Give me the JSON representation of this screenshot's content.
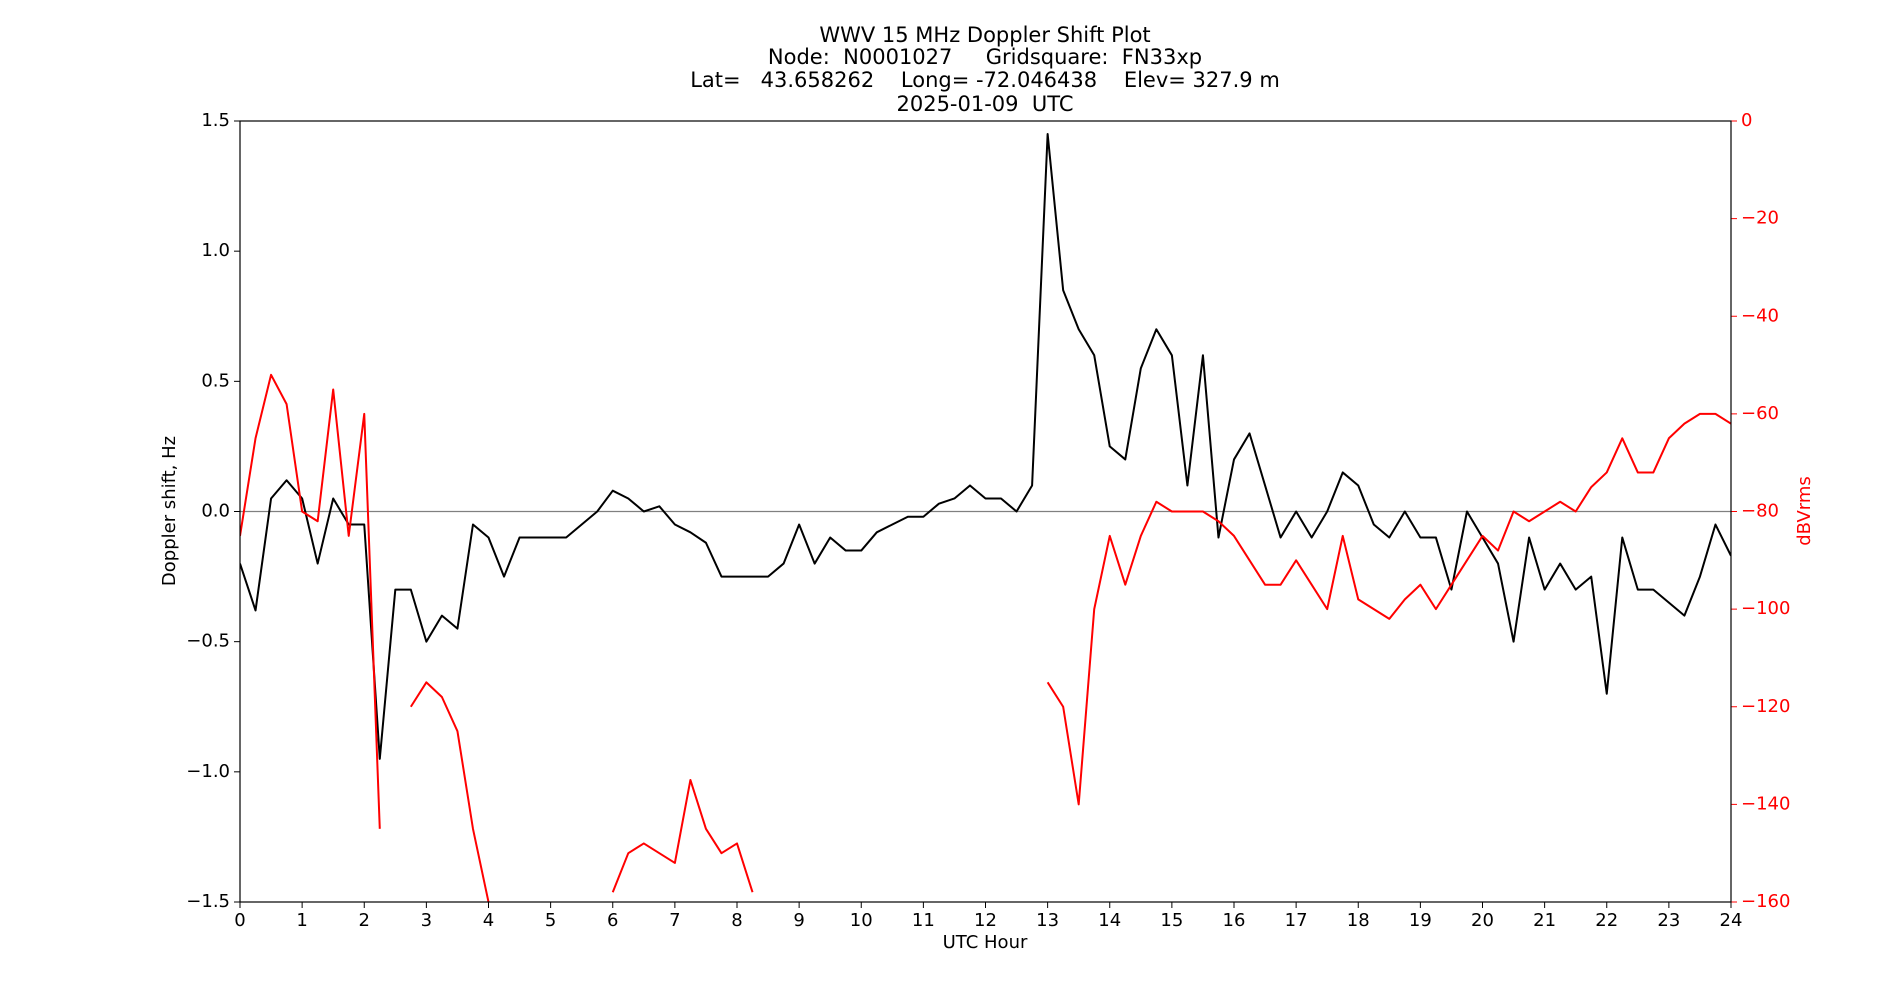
{
  "chart_data": {
    "type": "line",
    "title": "WWV 15 MHz Doppler Shift Plot",
    "subtitle": [
      "Node:  N0001027     Gridsquare:  FN33xp",
      "Lat=   43.658262    Long= -72.046438    Elev= 327.9 m",
      "2025-01-09  UTC"
    ],
    "xlabel": "UTC Hour",
    "ylabel": "Doppler shift, Hz",
    "y2label": "dBVrms",
    "y2color": "#ff0000",
    "x": [
      0,
      0.25,
      0.5,
      0.75,
      1,
      1.25,
      1.5,
      1.75,
      2,
      2.25,
      2.5,
      2.75,
      3,
      3.25,
      3.5,
      3.75,
      4,
      4.25,
      4.5,
      4.75,
      5,
      5.25,
      5.5,
      5.75,
      6,
      6.25,
      6.5,
      6.75,
      7,
      7.25,
      7.5,
      7.75,
      8,
      8.25,
      8.5,
      8.75,
      9,
      9.25,
      9.5,
      9.75,
      10,
      10.25,
      10.5,
      10.75,
      11,
      11.25,
      11.5,
      11.75,
      12,
      12.25,
      12.5,
      12.75,
      13,
      13.25,
      13.5,
      13.75,
      14,
      14.25,
      14.5,
      14.75,
      15,
      15.25,
      15.5,
      15.75,
      16,
      16.25,
      16.5,
      16.75,
      17,
      17.25,
      17.5,
      17.75,
      18,
      18.25,
      18.5,
      18.75,
      19,
      19.25,
      19.5,
      19.75,
      20,
      20.25,
      20.5,
      20.75,
      21,
      21.25,
      21.5,
      21.75,
      22,
      22.25,
      22.5,
      22.75,
      23,
      23.25,
      23.5,
      23.75,
      24
    ],
    "series": [
      {
        "name": "Doppler shift",
        "color": "#000000",
        "values": [
          -0.2,
          -0.38,
          0.05,
          0.12,
          0.05,
          -0.2,
          0.05,
          -0.05,
          -0.05,
          -0.95,
          -0.3,
          -0.3,
          -0.5,
          -0.4,
          -0.45,
          -0.05,
          -0.1,
          -0.25,
          -0.1,
          -0.1,
          -0.1,
          -0.1,
          -0.05,
          0.0,
          0.08,
          0.05,
          0.0,
          0.02,
          -0.05,
          -0.08,
          -0.12,
          -0.25,
          -0.25,
          -0.25,
          -0.25,
          -0.2,
          -0.05,
          -0.2,
          -0.1,
          -0.15,
          -0.15,
          -0.08,
          -0.05,
          -0.02,
          -0.02,
          0.03,
          0.05,
          0.1,
          0.05,
          0.05,
          0.0,
          0.1,
          1.45,
          0.85,
          0.7,
          0.6,
          0.25,
          0.2,
          0.55,
          0.7,
          0.6,
          0.1,
          0.6,
          -0.1,
          0.2,
          0.3,
          0.1,
          -0.1,
          0.0,
          -0.1,
          0.0,
          0.15,
          0.1,
          -0.05,
          -0.1,
          0.0,
          -0.1,
          -0.1,
          -0.3,
          0.0,
          -0.1,
          -0.2,
          -0.5,
          -0.1,
          -0.3,
          -0.2,
          -0.3,
          -0.25,
          -0.7,
          -0.1,
          -0.3,
          -0.3,
          -0.35,
          -0.4,
          -0.25,
          -0.05,
          -0.17
        ]
      },
      {
        "name": "dBVrms",
        "color": "#ff0000",
        "axis": "y2",
        "values": [
          -85,
          -65,
          -52,
          -58,
          -80,
          -82,
          -55,
          -85,
          -60,
          -145,
          null,
          -120,
          -115,
          -118,
          -125,
          -145,
          -160,
          null,
          null,
          null,
          null,
          null,
          null,
          null,
          -158,
          -150,
          -148,
          -150,
          -152,
          -135,
          -145,
          -150,
          -148,
          -158,
          null,
          null,
          null,
          null,
          null,
          null,
          null,
          null,
          null,
          null,
          null,
          null,
          null,
          null,
          null,
          null,
          null,
          null,
          -115,
          -120,
          -140,
          -100,
          -85,
          -95,
          -85,
          -78,
          -80,
          -80,
          -80,
          -82,
          -85,
          -90,
          -95,
          -95,
          -90,
          -95,
          -100,
          -85,
          -98,
          -100,
          -102,
          -98,
          -95,
          -100,
          -95,
          -90,
          -85,
          -88,
          -80,
          -82,
          -80,
          -78,
          -80,
          -75,
          -72,
          -65,
          -72,
          -72,
          -65,
          -62,
          -60,
          -60,
          -62
        ]
      }
    ],
    "hline": 0,
    "hline_color": "#808080",
    "xlim": [
      0,
      24
    ],
    "xticks": [
      0,
      1,
      2,
      3,
      4,
      5,
      6,
      7,
      8,
      9,
      10,
      11,
      12,
      13,
      14,
      15,
      16,
      17,
      18,
      19,
      20,
      21,
      22,
      23,
      24
    ],
    "ylim": [
      -1.5,
      1.5
    ],
    "yticks": [
      {
        "value": -1.5,
        "label": "−1.5"
      },
      {
        "value": -1.0,
        "label": "−1.0"
      },
      {
        "value": -0.5,
        "label": "−0.5"
      },
      {
        "value": 0,
        "label": "0.0"
      },
      0.5,
      {
        "value": 1.0,
        "label": "1.0"
      },
      1.5
    ],
    "y2lim": [
      -160,
      0
    ],
    "y2ticks": [
      {
        "value": -160,
        "label": "−160"
      },
      {
        "value": -140,
        "label": "−140"
      },
      {
        "value": -120,
        "label": "−120"
      },
      {
        "value": -100,
        "label": "−100"
      },
      {
        "value": -80,
        "label": "−80"
      },
      {
        "value": -60,
        "label": "−60"
      },
      {
        "value": -40,
        "label": "−40"
      },
      {
        "value": -20,
        "label": "−20"
      },
      0
    ],
    "grid": false
  }
}
